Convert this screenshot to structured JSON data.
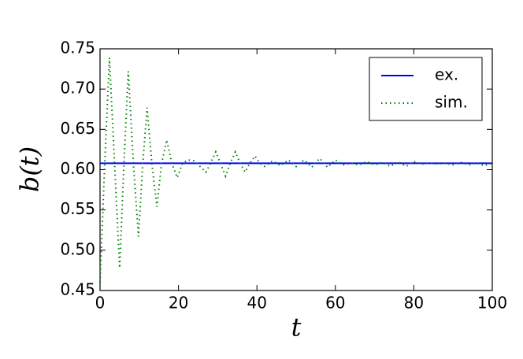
{
  "chart_data": {
    "type": "line",
    "x_label": "t",
    "y_label": "b(t)",
    "xlim": [
      0,
      100
    ],
    "xticks": [
      0,
      20,
      40,
      60,
      80,
      100
    ],
    "ylim": [
      0.45,
      0.75
    ],
    "yticks": [
      0.45,
      {
        "value": 0.5,
        "label": "0.50"
      },
      0.55,
      {
        "value": 0.6,
        "label": "0.60"
      },
      0.65,
      {
        "value": 0.7,
        "label": "0.70"
      },
      0.75
    ],
    "legend": "upper right",
    "series": [
      {
        "name": "ex.",
        "color": "#0000ff",
        "style": "solid",
        "x": [
          0,
          100
        ],
        "values": [
          0.608,
          0.608
        ]
      },
      {
        "name": "sim.",
        "color": "#008000",
        "style": "dotted",
        "x": [
          0,
          1.2,
          2.4,
          3.7,
          5,
          6.1,
          7.2,
          8.5,
          9.8,
          10.9,
          12,
          13.2,
          14.5,
          15.7,
          17,
          18.3,
          19.7,
          21,
          22.5,
          24,
          25.5,
          27,
          28.2,
          29.5,
          30.7,
          32,
          33.2,
          34.5,
          35.7,
          37,
          38.2,
          39.5,
          40.7,
          42,
          44,
          46,
          48,
          50,
          52,
          54,
          56,
          58,
          60,
          62,
          64,
          66,
          68,
          70,
          72,
          74,
          76,
          78,
          80,
          82,
          84,
          86,
          88,
          90,
          92,
          94,
          96,
          98,
          100
        ],
        "values": [
          0.46,
          0.608,
          0.739,
          0.608,
          0.478,
          0.608,
          0.722,
          0.608,
          0.517,
          0.608,
          0.677,
          0.608,
          0.554,
          0.608,
          0.637,
          0.608,
          0.59,
          0.608,
          0.612,
          0.611,
          0.604,
          0.597,
          0.608,
          0.622,
          0.608,
          0.592,
          0.608,
          0.622,
          0.608,
          0.597,
          0.608,
          0.617,
          0.608,
          0.604,
          0.611,
          0.605,
          0.612,
          0.604,
          0.612,
          0.603,
          0.614,
          0.603,
          0.612,
          0.606,
          0.608,
          0.606,
          0.61,
          0.606,
          0.609,
          0.604,
          0.61,
          0.604,
          0.61,
          0.607,
          0.608,
          0.607,
          0.608,
          0.606,
          0.609,
          0.606,
          0.608,
          0.605,
          0.608
        ]
      }
    ]
  }
}
